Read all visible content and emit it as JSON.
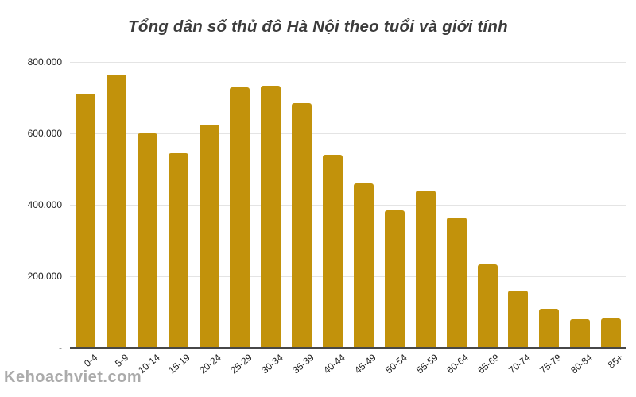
{
  "watermark": "Kehoachviet.com",
  "colors": {
    "bar": "#C2920B",
    "gridline": "#E4E4E4",
    "axis_line": "#474747",
    "title_text": "#3C3C3C",
    "tick_text": "#1F1F1F",
    "watermark_text": "#ABABAB",
    "background": "#FFFFFF"
  },
  "chart_data": {
    "type": "bar",
    "title": "Tổng dân số thủ đô Hà Nội theo tuổi và giới tính",
    "categories": [
      "0-4",
      "5-9",
      "10-14",
      "15-19",
      "20-24",
      "25-29",
      "30-34",
      "35-39",
      "40-44",
      "45-49",
      "50-54",
      "55-59",
      "60-64",
      "65-69",
      "70-74",
      "75-79",
      "80-84",
      "85+"
    ],
    "values": [
      712000,
      765000,
      600000,
      545000,
      625000,
      728000,
      734000,
      684000,
      541000,
      460000,
      385000,
      441000,
      364000,
      233000,
      161000,
      109000,
      80000,
      82000
    ],
    "xlabel": "",
    "ylabel": "",
    "ylim": [
      0,
      800000
    ],
    "y_ticks": [
      {
        "label": "800.000",
        "value": 800000
      },
      {
        "label": "600.000",
        "value": 600000
      },
      {
        "label": "400.000",
        "value": 400000
      },
      {
        "label": "200.000",
        "value": 200000
      },
      {
        "label": "-",
        "value": 0
      }
    ],
    "grid": true,
    "legend": "none",
    "x_tick_rotation_deg": -40,
    "bar_color": "#C2920B"
  }
}
